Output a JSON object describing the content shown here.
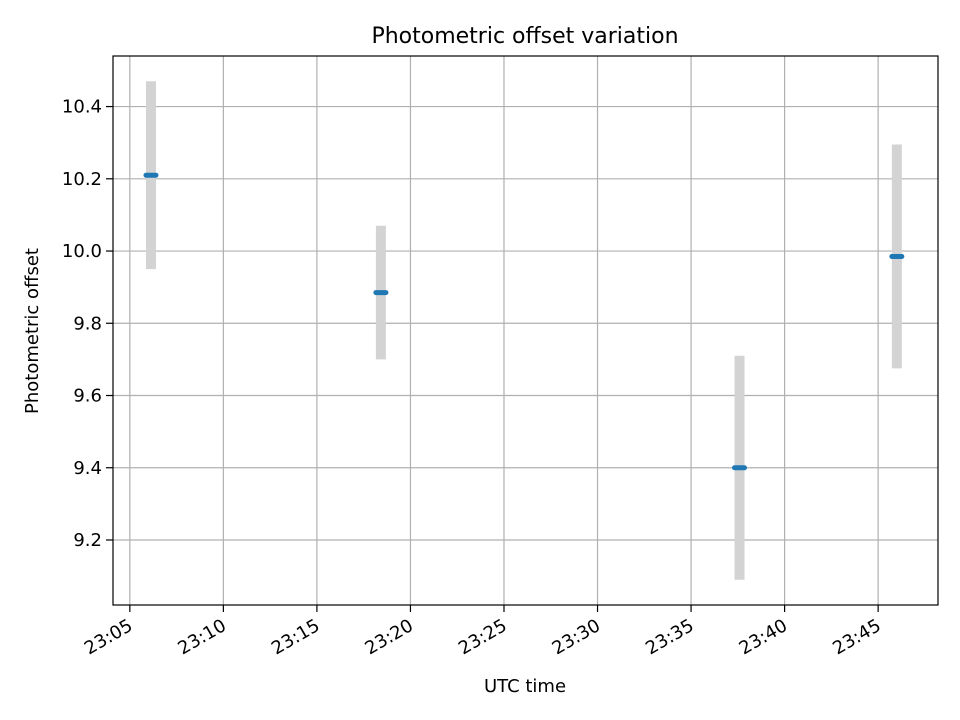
{
  "chart_data": {
    "type": "scatter",
    "title": "Photometric offset variation",
    "xlabel": "UTC time",
    "ylabel": "Photometric offset",
    "x_ticks": [
      "23:05",
      "23:10",
      "23:15",
      "23:20",
      "23:25",
      "23:30",
      "23:35",
      "23:40",
      "23:45"
    ],
    "x_tick_minutes": [
      5,
      10,
      15,
      20,
      25,
      30,
      35,
      40,
      45
    ],
    "xlim_minutes": [
      4.1,
      48.2
    ],
    "y_ticks": [
      "9.2",
      "9.4",
      "9.6",
      "9.8",
      "10.0",
      "10.2",
      "10.4"
    ],
    "y_tick_values": [
      9.2,
      9.4,
      9.6,
      9.8,
      10.0,
      10.2,
      10.4
    ],
    "ylim": [
      9.02,
      10.54
    ],
    "grid": true,
    "colors": {
      "point": "#1f77b4",
      "errorbar": "#d3d3d3",
      "grid": "#b0b0b0"
    },
    "points": [
      {
        "time": "23:06:08",
        "minute": 6.13,
        "y": 10.21,
        "ylow": 9.95,
        "yhigh": 10.47
      },
      {
        "time": "23:18:25",
        "minute": 18.42,
        "y": 9.885,
        "ylow": 9.7,
        "yhigh": 10.07
      },
      {
        "time": "23:37:35",
        "minute": 37.59,
        "y": 9.4,
        "ylow": 9.09,
        "yhigh": 9.71
      },
      {
        "time": "23:46:00",
        "minute": 46.0,
        "y": 9.985,
        "ylow": 9.675,
        "yhigh": 10.295
      }
    ]
  }
}
